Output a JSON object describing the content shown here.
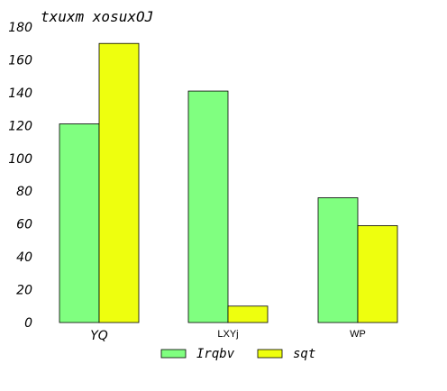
{
  "chart_data": {
    "type": "bar",
    "title": "txuxm xosuxOJ",
    "categories": [
      "YQ",
      "LXYj",
      "WP"
    ],
    "series": [
      {
        "name": "Irqbv",
        "values": [
          121,
          141,
          76
        ],
        "color": "#80ff80"
      },
      {
        "name": "sqt",
        "values": [
          170,
          10,
          59
        ],
        "color": "#eeff0e"
      }
    ],
    "ylim": [
      0,
      180
    ],
    "yticks": [
      "0",
      "20",
      "40",
      "60",
      "80",
      "100",
      "120",
      "140",
      "160",
      "180"
    ],
    "grid": false,
    "legend_position": "bottom"
  }
}
